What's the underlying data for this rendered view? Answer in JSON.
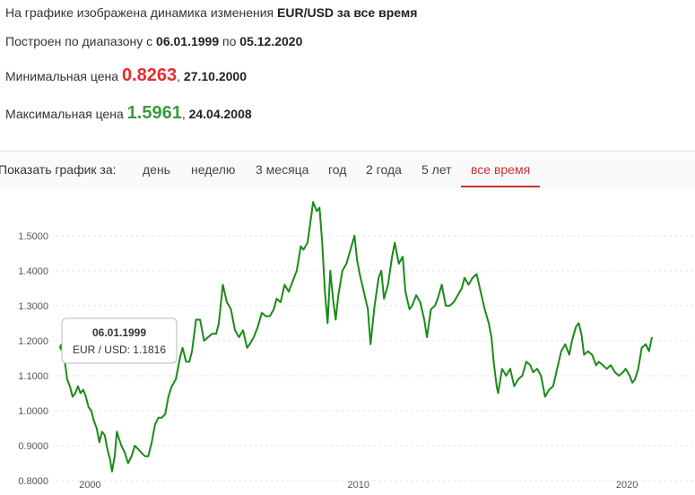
{
  "header": {
    "line1_prefix": "На графике изображена динамика изменения",
    "line1_bold": "EUR/USD за все время",
    "line2_prefix": "Построен по диапазону с",
    "line2_from": "06.01.1999",
    "line2_mid": "по",
    "line2_to": "05.12.2020",
    "min_label": "Минимальная цена",
    "min_price": "0.8263",
    "min_date": "27.10.2000",
    "max_label": "Максимальная цена",
    "max_price": "1.5961",
    "max_date": "24.04.2008",
    "comma": ","
  },
  "period_tabs": {
    "label": "Показать график за:",
    "items": [
      "день",
      "неделю",
      "3 месяца",
      "год",
      "2 года",
      "5 лет",
      "все время"
    ],
    "active": "все время"
  },
  "tooltip": {
    "date": "06.01.1999",
    "text": "EUR / USD: 1.1816"
  },
  "colors": {
    "line": "#1a8a1a",
    "min": "#e32d2d",
    "max": "#3c9a3c",
    "active_tab": "#c83232"
  },
  "chart_data": {
    "type": "line",
    "series": [
      {
        "values": [
          [
            1999.01,
            1.1816
          ],
          [
            1999.08,
            1.13
          ],
          [
            1999.15,
            1.09
          ],
          [
            1999.25,
            1.07
          ],
          [
            1999.35,
            1.04
          ],
          [
            1999.45,
            1.05
          ],
          [
            1999.55,
            1.07
          ],
          [
            1999.65,
            1.05
          ],
          [
            1999.75,
            1.06
          ],
          [
            1999.85,
            1.04
          ],
          [
            1999.95,
            1.01
          ],
          [
            2000.05,
            1.0
          ],
          [
            2000.15,
            0.97
          ],
          [
            2000.25,
            0.95
          ],
          [
            2000.35,
            0.91
          ],
          [
            2000.45,
            0.94
          ],
          [
            2000.55,
            0.93
          ],
          [
            2000.65,
            0.89
          ],
          [
            2000.75,
            0.86
          ],
          [
            2000.82,
            0.8263
          ],
          [
            2000.92,
            0.87
          ],
          [
            2001.0,
            0.94
          ],
          [
            2001.08,
            0.92
          ],
          [
            2001.17,
            0.9
          ],
          [
            2001.3,
            0.88
          ],
          [
            2001.42,
            0.85
          ],
          [
            2001.55,
            0.87
          ],
          [
            2001.67,
            0.9
          ],
          [
            2001.8,
            0.89
          ],
          [
            2001.92,
            0.88
          ],
          [
            2002.05,
            0.87
          ],
          [
            2002.17,
            0.87
          ],
          [
            2002.3,
            0.91
          ],
          [
            2002.42,
            0.96
          ],
          [
            2002.55,
            0.98
          ],
          [
            2002.67,
            0.98
          ],
          [
            2002.8,
            0.99
          ],
          [
            2002.92,
            1.04
          ],
          [
            2003.05,
            1.07
          ],
          [
            2003.2,
            1.09
          ],
          [
            2003.35,
            1.15
          ],
          [
            2003.45,
            1.18
          ],
          [
            2003.58,
            1.14
          ],
          [
            2003.7,
            1.14
          ],
          [
            2003.8,
            1.17
          ],
          [
            2003.95,
            1.26
          ],
          [
            2004.1,
            1.26
          ],
          [
            2004.25,
            1.2
          ],
          [
            2004.4,
            1.21
          ],
          [
            2004.55,
            1.22
          ],
          [
            2004.7,
            1.22
          ],
          [
            2004.8,
            1.25
          ],
          [
            2004.95,
            1.36
          ],
          [
            2005.1,
            1.31
          ],
          [
            2005.25,
            1.29
          ],
          [
            2005.4,
            1.23
          ],
          [
            2005.55,
            1.21
          ],
          [
            2005.7,
            1.23
          ],
          [
            2005.85,
            1.18
          ],
          [
            2005.95,
            1.19
          ],
          [
            2006.1,
            1.21
          ],
          [
            2006.25,
            1.24
          ],
          [
            2006.4,
            1.28
          ],
          [
            2006.55,
            1.27
          ],
          [
            2006.7,
            1.27
          ],
          [
            2006.85,
            1.29
          ],
          [
            2006.95,
            1.32
          ],
          [
            2007.1,
            1.31
          ],
          [
            2007.25,
            1.36
          ],
          [
            2007.4,
            1.34
          ],
          [
            2007.55,
            1.37
          ],
          [
            2007.7,
            1.4
          ],
          [
            2007.85,
            1.47
          ],
          [
            2007.95,
            1.46
          ],
          [
            2008.1,
            1.48
          ],
          [
            2008.25,
            1.56
          ],
          [
            2008.31,
            1.5961
          ],
          [
            2008.45,
            1.57
          ],
          [
            2008.55,
            1.58
          ],
          [
            2008.65,
            1.48
          ],
          [
            2008.75,
            1.34
          ],
          [
            2008.85,
            1.25
          ],
          [
            2008.95,
            1.4
          ],
          [
            2009.05,
            1.32
          ],
          [
            2009.15,
            1.26
          ],
          [
            2009.25,
            1.33
          ],
          [
            2009.4,
            1.4
          ],
          [
            2009.55,
            1.42
          ],
          [
            2009.7,
            1.46
          ],
          [
            2009.85,
            1.5
          ],
          [
            2009.95,
            1.43
          ],
          [
            2010.05,
            1.39
          ],
          [
            2010.2,
            1.34
          ],
          [
            2010.35,
            1.29
          ],
          [
            2010.45,
            1.19
          ],
          [
            2010.6,
            1.3
          ],
          [
            2010.75,
            1.38
          ],
          [
            2010.85,
            1.4
          ],
          [
            2010.95,
            1.32
          ],
          [
            2011.1,
            1.36
          ],
          [
            2011.25,
            1.44
          ],
          [
            2011.35,
            1.48
          ],
          [
            2011.5,
            1.42
          ],
          [
            2011.65,
            1.44
          ],
          [
            2011.75,
            1.34
          ],
          [
            2011.9,
            1.29
          ],
          [
            2012.0,
            1.3
          ],
          [
            2012.15,
            1.33
          ],
          [
            2012.3,
            1.31
          ],
          [
            2012.45,
            1.26
          ],
          [
            2012.55,
            1.21
          ],
          [
            2012.7,
            1.29
          ],
          [
            2012.85,
            1.3
          ],
          [
            2012.95,
            1.32
          ],
          [
            2013.1,
            1.36
          ],
          [
            2013.25,
            1.3
          ],
          [
            2013.4,
            1.3
          ],
          [
            2013.55,
            1.31
          ],
          [
            2013.7,
            1.33
          ],
          [
            2013.85,
            1.35
          ],
          [
            2013.95,
            1.38
          ],
          [
            2014.1,
            1.36
          ],
          [
            2014.25,
            1.38
          ],
          [
            2014.4,
            1.39
          ],
          [
            2014.55,
            1.34
          ],
          [
            2014.7,
            1.29
          ],
          [
            2014.85,
            1.25
          ],
          [
            2014.95,
            1.21
          ],
          [
            2015.05,
            1.13
          ],
          [
            2015.15,
            1.07
          ],
          [
            2015.2,
            1.05
          ],
          [
            2015.35,
            1.12
          ],
          [
            2015.5,
            1.1
          ],
          [
            2015.65,
            1.12
          ],
          [
            2015.8,
            1.07
          ],
          [
            2015.95,
            1.09
          ],
          [
            2016.1,
            1.1
          ],
          [
            2016.25,
            1.14
          ],
          [
            2016.4,
            1.13
          ],
          [
            2016.5,
            1.11
          ],
          [
            2016.65,
            1.12
          ],
          [
            2016.8,
            1.1
          ],
          [
            2016.95,
            1.04
          ],
          [
            2017.1,
            1.06
          ],
          [
            2017.25,
            1.07
          ],
          [
            2017.4,
            1.12
          ],
          [
            2017.55,
            1.17
          ],
          [
            2017.7,
            1.19
          ],
          [
            2017.85,
            1.16
          ],
          [
            2017.95,
            1.2
          ],
          [
            2018.1,
            1.24
          ],
          [
            2018.2,
            1.25
          ],
          [
            2018.3,
            1.22
          ],
          [
            2018.4,
            1.16
          ],
          [
            2018.55,
            1.17
          ],
          [
            2018.7,
            1.16
          ],
          [
            2018.85,
            1.13
          ],
          [
            2018.95,
            1.14
          ],
          [
            2019.1,
            1.13
          ],
          [
            2019.25,
            1.12
          ],
          [
            2019.4,
            1.13
          ],
          [
            2019.55,
            1.11
          ],
          [
            2019.7,
            1.1
          ],
          [
            2019.85,
            1.11
          ],
          [
            2019.95,
            1.12
          ],
          [
            2020.1,
            1.1
          ],
          [
            2020.2,
            1.08
          ],
          [
            2020.3,
            1.09
          ],
          [
            2020.42,
            1.12
          ],
          [
            2020.55,
            1.18
          ],
          [
            2020.7,
            1.19
          ],
          [
            2020.82,
            1.17
          ],
          [
            2020.93,
            1.21
          ]
        ]
      }
    ],
    "ylim": [
      0.79,
      1.62
    ],
    "xlim": [
      1998.72,
      2021.03
    ],
    "y_ticks": [
      "0.8000",
      "0.9000",
      "1.0000",
      "1.1000",
      "1.2000",
      "1.3000",
      "1.4000",
      "1.5000"
    ],
    "x_ticks": [
      "2000",
      "2010",
      "2020"
    ],
    "grid": true
  }
}
